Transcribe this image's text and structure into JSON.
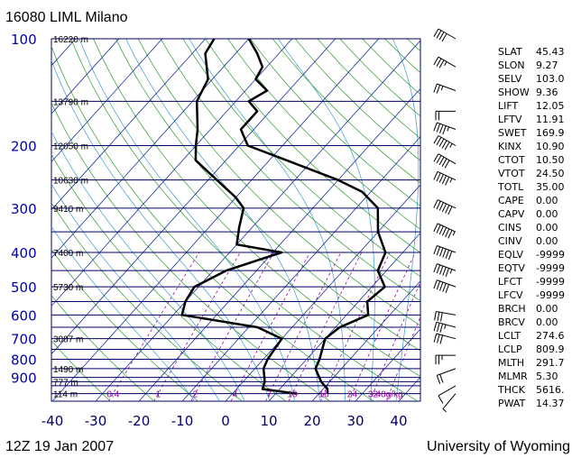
{
  "header": {
    "station": "16080 LIML Milano"
  },
  "footer": {
    "time": "12Z 19 Jan 2007",
    "source": "University of Wyoming"
  },
  "chart_data": {
    "type": "line",
    "title": "16080 LIML Milano",
    "subtitle": "12Z 19 Jan 2007",
    "xlabel": "",
    "ylabel": "",
    "xlim": [
      -40,
      45
    ],
    "pressure_levels": [
      100,
      200,
      300,
      400,
      500,
      600,
      700,
      800,
      900
    ],
    "temperature_ticks": [
      -40,
      -30,
      -20,
      -10,
      0,
      10,
      20,
      30,
      40
    ],
    "height_labels": [
      {
        "p": 100,
        "text": "16220 m"
      },
      {
        "p": 150,
        "text": "13790 m"
      },
      {
        "p": 200,
        "text": "12050 m"
      },
      {
        "p": 250,
        "text": "10630 m"
      },
      {
        "p": 300,
        "text": "9410 m"
      },
      {
        "p": 400,
        "text": "7400 m"
      },
      {
        "p": 500,
        "text": "5730 m"
      },
      {
        "p": 700,
        "text": "3087 m"
      },
      {
        "p": 850,
        "text": "1490 m"
      },
      {
        "p": 925,
        "text": "777 m"
      },
      {
        "p": 1000,
        "text": "114 m"
      }
    ],
    "mixing_ratio_labels": [
      "0.4",
      "1",
      "2",
      "4",
      "7",
      "10",
      "16",
      "24",
      "32",
      "40g/kg"
    ],
    "series": [
      {
        "name": "Temperature",
        "points": [
          [
            1000,
            22
          ],
          [
            970,
            21
          ],
          [
            925,
            18
          ],
          [
            850,
            14
          ],
          [
            800,
            13
          ],
          [
            700,
            10
          ],
          [
            650,
            11
          ],
          [
            600,
            15
          ],
          [
            550,
            12
          ],
          [
            500,
            13
          ],
          [
            450,
            8
          ],
          [
            400,
            6
          ],
          [
            350,
            0
          ],
          [
            300,
            -5
          ],
          [
            270,
            -12
          ],
          [
            250,
            -20
          ],
          [
            220,
            -36
          ],
          [
            200,
            -48
          ],
          [
            180,
            -53
          ],
          [
            160,
            -53
          ],
          [
            150,
            -57
          ],
          [
            140,
            -55
          ],
          [
            130,
            -60
          ],
          [
            120,
            -61
          ],
          [
            110,
            -65
          ],
          [
            100,
            -70
          ]
        ]
      },
      {
        "name": "Dewpoint",
        "points": [
          [
            1000,
            15
          ],
          [
            970,
            6
          ],
          [
            925,
            5
          ],
          [
            850,
            2
          ],
          [
            800,
            1
          ],
          [
            700,
            0
          ],
          [
            650,
            -8
          ],
          [
            600,
            -28
          ],
          [
            550,
            -30
          ],
          [
            500,
            -31
          ],
          [
            450,
            -27
          ],
          [
            400,
            -18
          ],
          [
            380,
            -30
          ],
          [
            340,
            -33
          ],
          [
            300,
            -36
          ],
          [
            280,
            -40
          ],
          [
            250,
            -48
          ],
          [
            220,
            -57
          ],
          [
            200,
            -60
          ],
          [
            180,
            -63
          ],
          [
            150,
            -69
          ],
          [
            130,
            -71
          ],
          [
            110,
            -77
          ],
          [
            100,
            -78
          ]
        ]
      }
    ],
    "wind_barbs": [
      {
        "p": 100,
        "speed_kt": 40,
        "dir": 300
      },
      {
        "p": 120,
        "speed_kt": 35,
        "dir": 300
      },
      {
        "p": 140,
        "speed_kt": 25,
        "dir": 290
      },
      {
        "p": 160,
        "speed_kt": 20,
        "dir": 270
      },
      {
        "p": 180,
        "speed_kt": 45,
        "dir": 290
      },
      {
        "p": 200,
        "speed_kt": 55,
        "dir": 300
      },
      {
        "p": 225,
        "speed_kt": 50,
        "dir": 300
      },
      {
        "p": 250,
        "speed_kt": 55,
        "dir": 295
      },
      {
        "p": 300,
        "speed_kt": 60,
        "dir": 295
      },
      {
        "p": 350,
        "speed_kt": 65,
        "dir": 295
      },
      {
        "p": 400,
        "speed_kt": 60,
        "dir": 290
      },
      {
        "p": 450,
        "speed_kt": 55,
        "dir": 290
      },
      {
        "p": 500,
        "speed_kt": 50,
        "dir": 290
      },
      {
        "p": 600,
        "speed_kt": 30,
        "dir": 280
      },
      {
        "p": 650,
        "speed_kt": 35,
        "dir": 285
      },
      {
        "p": 700,
        "speed_kt": 30,
        "dir": 285
      },
      {
        "p": 780,
        "speed_kt": 25,
        "dir": 270
      },
      {
        "p": 850,
        "speed_kt": 20,
        "dir": 250
      },
      {
        "p": 950,
        "speed_kt": 10,
        "dir": 240
      },
      {
        "p": 1000,
        "speed_kt": 5,
        "dir": 220
      }
    ],
    "stats": [
      {
        "key": "SLAT",
        "value": "45.43"
      },
      {
        "key": "SLON",
        "value": "9.27"
      },
      {
        "key": "SELV",
        "value": "103.0"
      },
      {
        "key": "SHOW",
        "value": "9.36"
      },
      {
        "key": "LIFT",
        "value": "12.05"
      },
      {
        "key": "LFTV",
        "value": "11.91"
      },
      {
        "key": "SWET",
        "value": "169.9"
      },
      {
        "key": "KINX",
        "value": "10.90"
      },
      {
        "key": "CTOT",
        "value": "10.50"
      },
      {
        "key": "VTOT",
        "value": "24.50"
      },
      {
        "key": "TOTL",
        "value": "35.00"
      },
      {
        "key": "CAPE",
        "value": "0.00"
      },
      {
        "key": "CAPV",
        "value": "0.00"
      },
      {
        "key": "CINS",
        "value": "0.00"
      },
      {
        "key": "CINV",
        "value": "0.00"
      },
      {
        "key": "EQLV",
        "value": "-9999"
      },
      {
        "key": "EQTV",
        "value": "-9999"
      },
      {
        "key": "LFCT",
        "value": "-9999"
      },
      {
        "key": "LFCV",
        "value": "-9999"
      },
      {
        "key": "BRCH",
        "value": "0.00"
      },
      {
        "key": "BRCV",
        "value": "0.00"
      },
      {
        "key": "LCLT",
        "value": "274.6"
      },
      {
        "key": "LCLP",
        "value": "809.9"
      },
      {
        "key": "MLTH",
        "value": "291.7"
      },
      {
        "key": "MLMR",
        "value": "5.30"
      },
      {
        "key": "THCK",
        "value": "5616."
      },
      {
        "key": "PWAT",
        "value": "14.37"
      }
    ],
    "grid": true,
    "colors": {
      "isobar": "#000066",
      "isotherm": "#1a2f9e",
      "dry_adiabat": "#2a9a2a",
      "moist_adiabat": "#3a9ad0",
      "mixing_ratio": "#9900aa",
      "profile": "#000000",
      "pressure_label": "#0000aa"
    }
  }
}
